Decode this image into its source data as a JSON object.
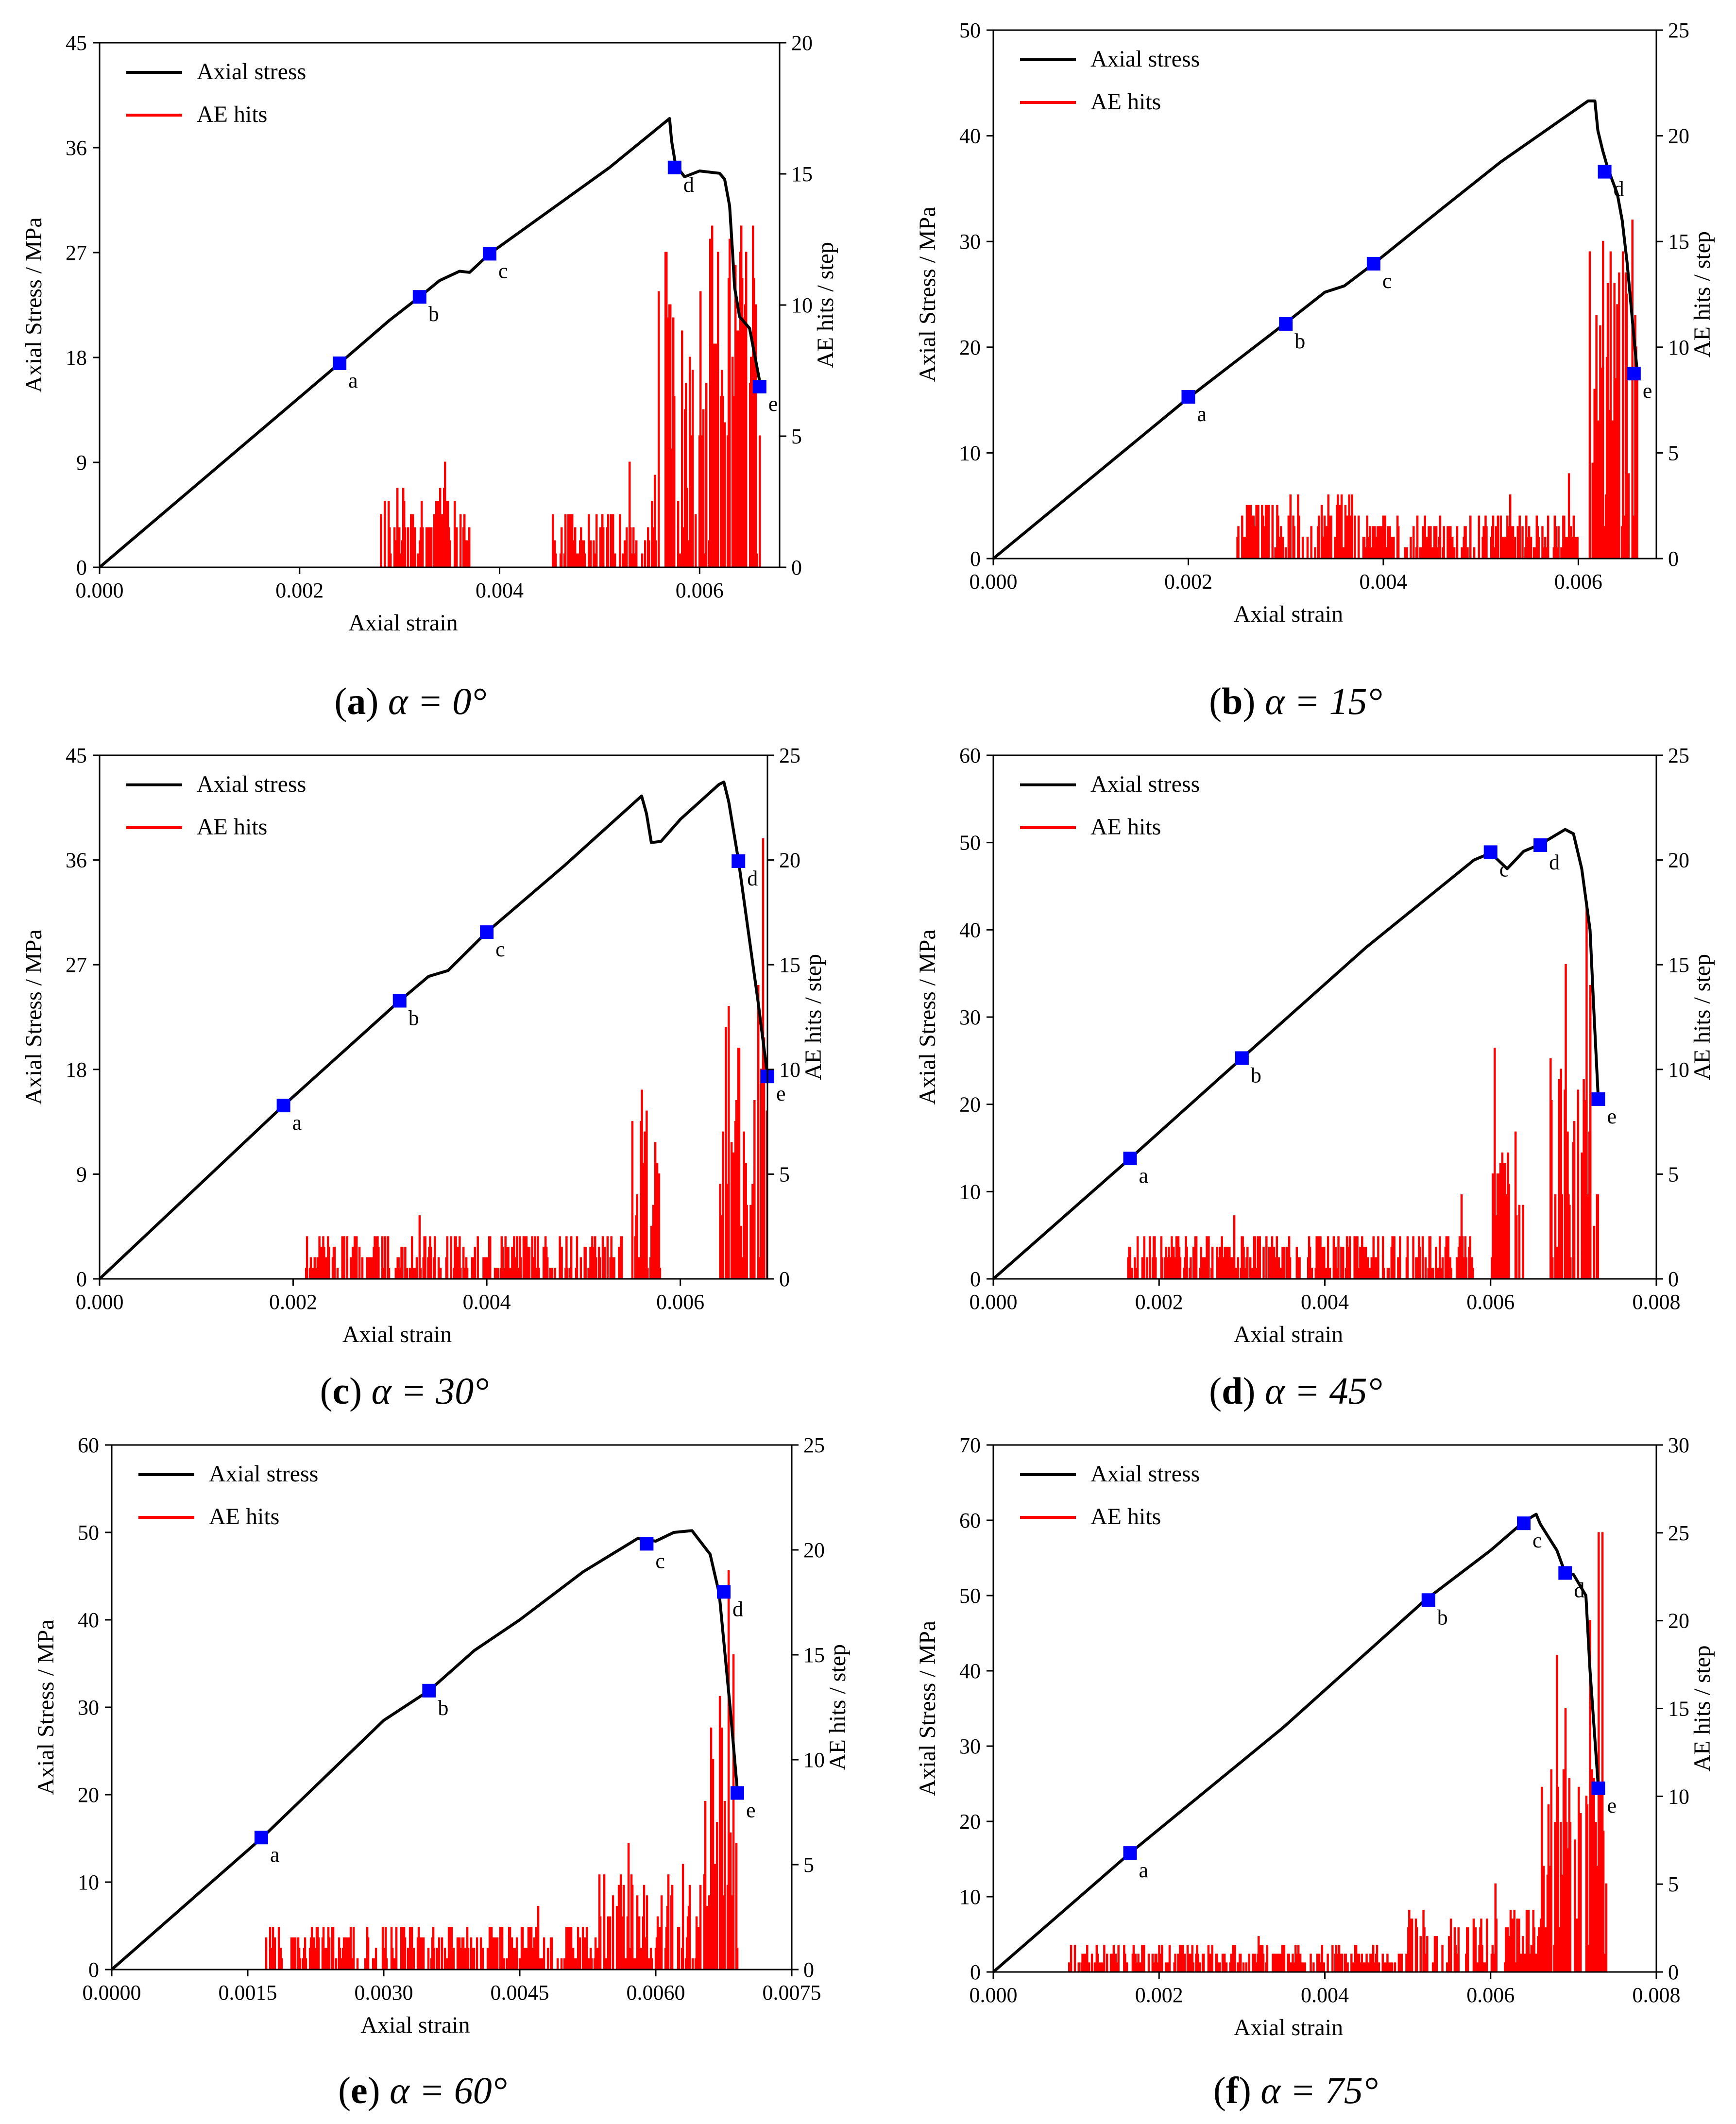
{
  "chart_data": [
    {
      "type": "line",
      "caption": {
        "letter": "a",
        "text": "α = 0°"
      },
      "xlabel": "Axial strain",
      "ylabel": "Axial Stress / MPa",
      "y2label": "AE hits / step",
      "xlim": [
        0,
        0.0068
      ],
      "ylim": [
        0,
        45
      ],
      "y2lim": [
        0,
        20
      ],
      "xticks": [
        "0.000",
        "0.002",
        "0.004",
        "0.006"
      ],
      "yticks": [
        "0",
        "9",
        "18",
        "27",
        "36",
        "45"
      ],
      "y2ticks": [
        "0",
        "5",
        "10",
        "15",
        "20"
      ],
      "legend": {
        "position": "top-left",
        "stress": "Axial stress",
        "ae": "AE hits"
      },
      "stress": [
        [
          0,
          0
        ],
        [
          0.0024,
          17.5
        ],
        [
          0.0029,
          21.2
        ],
        [
          0.0032,
          23.2
        ],
        [
          0.0034,
          24.6
        ],
        [
          0.0036,
          25.4
        ],
        [
          0.0037,
          25.3
        ],
        [
          0.0039,
          26.9
        ],
        [
          0.0045,
          30.6
        ],
        [
          0.0051,
          34.3
        ],
        [
          0.0057,
          38.5
        ],
        [
          0.00572,
          36.6
        ],
        [
          0.00576,
          34.5
        ],
        [
          0.00585,
          33.5
        ],
        [
          0.006,
          34.0
        ],
        [
          0.0062,
          33.8
        ],
        [
          0.00625,
          33.3
        ],
        [
          0.0063,
          31.0
        ],
        [
          0.00633,
          27.0
        ],
        [
          0.00635,
          24.0
        ],
        [
          0.0064,
          21.5
        ],
        [
          0.0065,
          20.5
        ],
        [
          0.0066,
          16.0
        ]
      ],
      "markers": [
        {
          "x": 0.0024,
          "y": 17.5,
          "label": "a"
        },
        {
          "x": 0.0032,
          "y": 23.2,
          "label": "b"
        },
        {
          "x": 0.0039,
          "y": 26.9,
          "label": "c"
        },
        {
          "x": 0.00575,
          "y": 34.3,
          "label": "d"
        },
        {
          "x": 0.0066,
          "y": 15.5,
          "label": "e"
        }
      ],
      "ae": {
        "onset": 0.0028,
        "end": 0.0066,
        "zones": [
          [
            0.0028,
            0.0037,
            2
          ],
          [
            0.0045,
            0.0055,
            1.5
          ],
          [
            0.0055,
            0.006,
            7
          ],
          [
            0.006,
            0.0066,
            9
          ]
        ],
        "spikes": [
          [
            0.00345,
            4
          ],
          [
            0.0034,
            3
          ],
          [
            0.0053,
            4
          ],
          [
            0.00566,
            12
          ],
          [
            0.0057,
            10
          ],
          [
            0.0059,
            8
          ],
          [
            0.00642,
            11
          ],
          [
            0.00646,
            12
          ],
          [
            0.00638,
            9
          ],
          [
            0.0065,
            7
          ]
        ]
      }
    },
    {
      "type": "line",
      "caption": {
        "letter": "b",
        "text": "α = 15°"
      },
      "xlabel": "Axial strain",
      "ylabel": "Axial Stress / MPa",
      "y2label": "AE hits / step",
      "xlim": [
        0,
        0.0068
      ],
      "ylim": [
        0,
        50
      ],
      "y2lim": [
        0,
        25
      ],
      "xticks": [
        "0.000",
        "0.002",
        "0.004",
        "0.006"
      ],
      "yticks": [
        "0",
        "10",
        "20",
        "30",
        "40",
        "50"
      ],
      "y2ticks": [
        "0",
        "5",
        "10",
        "15",
        "20",
        "25"
      ],
      "legend": {
        "position": "top-left",
        "stress": "Axial stress",
        "ae": "AE hits"
      },
      "stress": [
        [
          0,
          0
        ],
        [
          0.002,
          15.2
        ],
        [
          0.003,
          22.3
        ],
        [
          0.0034,
          25.2
        ],
        [
          0.0036,
          25.8
        ],
        [
          0.0039,
          27.9
        ],
        [
          0.0046,
          33.1
        ],
        [
          0.0052,
          37.5
        ],
        [
          0.0061,
          43.3
        ],
        [
          0.00617,
          43.3
        ],
        [
          0.0062,
          40.5
        ],
        [
          0.00625,
          38.6
        ],
        [
          0.0063,
          37.0
        ],
        [
          0.0064,
          34.5
        ],
        [
          0.00645,
          32.0
        ],
        [
          0.0065,
          28.0
        ],
        [
          0.00655,
          23.0
        ],
        [
          0.0066,
          18.0
        ]
      ],
      "markers": [
        {
          "x": 0.002,
          "y": 15.3,
          "label": "a"
        },
        {
          "x": 0.003,
          "y": 22.2,
          "label": "b"
        },
        {
          "x": 0.0039,
          "y": 27.9,
          "label": "c"
        },
        {
          "x": 0.00627,
          "y": 36.6,
          "label": "d"
        },
        {
          "x": 0.00657,
          "y": 17.5,
          "label": "e"
        }
      ],
      "ae": {
        "onset": 0.0025,
        "end": 0.0066,
        "zones": [
          [
            0.0025,
            0.0037,
            2
          ],
          [
            0.0037,
            0.006,
            1.5
          ],
          [
            0.0061,
            0.0066,
            10
          ]
        ],
        "spikes": [
          [
            0.00625,
            15
          ],
          [
            0.0063,
            13
          ],
          [
            0.00655,
            16
          ],
          [
            0.0064,
            12
          ],
          [
            0.0059,
            4
          ],
          [
            0.0053,
            3
          ]
        ]
      }
    },
    {
      "type": "line",
      "caption": {
        "letter": "c",
        "text": "α = 30°"
      },
      "xlabel": "Axial strain",
      "ylabel": "Axial Stress / MPa",
      "y2label": "AE hits / step",
      "xlim": [
        0,
        0.0069
      ],
      "ylim": [
        0,
        45
      ],
      "y2lim": [
        0,
        25
      ],
      "xticks": [
        "0.000",
        "0.002",
        "0.004",
        "0.006"
      ],
      "yticks": [
        "0",
        "9",
        "18",
        "27",
        "36",
        "45"
      ],
      "y2ticks": [
        "0",
        "5",
        "10",
        "15",
        "20",
        "25"
      ],
      "legend": {
        "position": "top-left",
        "stress": "Axial stress",
        "ae": "AE hits"
      },
      "stress": [
        [
          0,
          0
        ],
        [
          0.0019,
          14.9
        ],
        [
          0.0031,
          23.9
        ],
        [
          0.0034,
          26.0
        ],
        [
          0.0036,
          26.5
        ],
        [
          0.004,
          29.8
        ],
        [
          0.0048,
          35.5
        ],
        [
          0.0056,
          41.5
        ],
        [
          0.00565,
          40.0
        ],
        [
          0.0057,
          37.5
        ],
        [
          0.0058,
          37.6
        ],
        [
          0.006,
          39.5
        ],
        [
          0.0064,
          42.5
        ],
        [
          0.00645,
          42.7
        ],
        [
          0.0065,
          41.0
        ],
        [
          0.0066,
          36.0
        ],
        [
          0.0067,
          30.0
        ],
        [
          0.0068,
          24.0
        ],
        [
          0.0069,
          17.5
        ]
      ],
      "markers": [
        {
          "x": 0.0019,
          "y": 14.9,
          "label": "a"
        },
        {
          "x": 0.0031,
          "y": 23.9,
          "label": "b"
        },
        {
          "x": 0.004,
          "y": 29.8,
          "label": "c"
        },
        {
          "x": 0.0066,
          "y": 35.9,
          "label": "d"
        },
        {
          "x": 0.0069,
          "y": 17.4,
          "label": "e"
        }
      ],
      "ae": {
        "onset": 0.0021,
        "end": 0.0069,
        "zones": [
          [
            0.0021,
            0.0054,
            1.5
          ],
          [
            0.0055,
            0.0058,
            5
          ],
          [
            0.0064,
            0.0069,
            8
          ]
        ],
        "spikes": [
          [
            0.0056,
            9
          ],
          [
            0.00565,
            8
          ],
          [
            0.0065,
            13
          ],
          [
            0.0066,
            11
          ],
          [
            0.00685,
            21
          ],
          [
            0.0068,
            14
          ],
          [
            0.0033,
            3
          ]
        ]
      }
    },
    {
      "type": "line",
      "caption": {
        "letter": "d",
        "text": "α = 45°"
      },
      "xlabel": "Axial strain",
      "ylabel": "Axial Stress / MPa",
      "y2label": "AE hits / step",
      "xlim": [
        0,
        0.008
      ],
      "ylim": [
        0,
        60
      ],
      "y2lim": [
        0,
        25
      ],
      "xticks": [
        "0.000",
        "0.002",
        "0.004",
        "0.006",
        "0.008"
      ],
      "yticks": [
        "0",
        "10",
        "20",
        "30",
        "40",
        "50",
        "60"
      ],
      "y2ticks": [
        "0",
        "5",
        "10",
        "15",
        "20",
        "25"
      ],
      "legend": {
        "position": "top-left",
        "stress": "Axial stress",
        "ae": "AE hits"
      },
      "stress": [
        [
          0,
          0
        ],
        [
          0.00165,
          13.8
        ],
        [
          0.003,
          25.3
        ],
        [
          0.0045,
          38.0
        ],
        [
          0.0058,
          48.0
        ],
        [
          0.006,
          48.8
        ],
        [
          0.0062,
          47.0
        ],
        [
          0.0064,
          49.0
        ],
        [
          0.0066,
          49.8
        ],
        [
          0.0069,
          51.5
        ],
        [
          0.007,
          51.0
        ],
        [
          0.0071,
          47.0
        ],
        [
          0.0072,
          40.0
        ],
        [
          0.00725,
          30.0
        ],
        [
          0.0073,
          20.5
        ]
      ],
      "markers": [
        {
          "x": 0.00165,
          "y": 13.8,
          "label": "a"
        },
        {
          "x": 0.003,
          "y": 25.3,
          "label": "b"
        },
        {
          "x": 0.006,
          "y": 48.9,
          "label": "c"
        },
        {
          "x": 0.0066,
          "y": 49.7,
          "label": "d"
        },
        {
          "x": 0.0073,
          "y": 20.6,
          "label": "e"
        }
      ],
      "ae": {
        "onset": 0.0016,
        "end": 0.0073,
        "zones": [
          [
            0.0016,
            0.0058,
            1.5
          ],
          [
            0.006,
            0.0064,
            4
          ],
          [
            0.0067,
            0.0073,
            7
          ]
        ],
        "spikes": [
          [
            0.00605,
            11
          ],
          [
            0.0063,
            7
          ],
          [
            0.0069,
            15
          ],
          [
            0.00715,
            18
          ],
          [
            0.0072,
            14
          ],
          [
            0.00565,
            4
          ],
          [
            0.0029,
            3
          ]
        ]
      }
    },
    {
      "type": "line",
      "caption": {
        "letter": "e",
        "text": "α = 60°"
      },
      "xlabel": "Axial strain",
      "ylabel": "Axial Stress / MPa",
      "y2label": "AE hits / step",
      "xlim": [
        0,
        0.0075
      ],
      "ylim": [
        0,
        60
      ],
      "y2lim": [
        0,
        25
      ],
      "xticks": [
        "0.0000",
        "0.0015",
        "0.0030",
        "0.0045",
        "0.0060",
        "0.0075"
      ],
      "yticks": [
        "0",
        "10",
        "20",
        "30",
        "40",
        "50",
        "60"
      ],
      "y2ticks": [
        "0",
        "5",
        "10",
        "15",
        "20",
        "25"
      ],
      "legend": {
        "position": "top-left",
        "stress": "Axial stress",
        "ae": "AE hits"
      },
      "stress": [
        [
          0,
          0
        ],
        [
          0.00165,
          15.0
        ],
        [
          0.003,
          28.5
        ],
        [
          0.0035,
          31.9
        ],
        [
          0.004,
          36.5
        ],
        [
          0.0045,
          40.0
        ],
        [
          0.0052,
          45.5
        ],
        [
          0.0058,
          49.3
        ],
        [
          0.006,
          49.0
        ],
        [
          0.0062,
          50.0
        ],
        [
          0.0064,
          50.2
        ],
        [
          0.0066,
          47.5
        ],
        [
          0.0067,
          43.0
        ],
        [
          0.00682,
          30.0
        ],
        [
          0.0069,
          20.5
        ]
      ],
      "markers": [
        {
          "x": 0.00165,
          "y": 15.1,
          "label": "a"
        },
        {
          "x": 0.0035,
          "y": 31.9,
          "label": "b"
        },
        {
          "x": 0.0059,
          "y": 48.7,
          "label": "c"
        },
        {
          "x": 0.00675,
          "y": 43.2,
          "label": "d"
        },
        {
          "x": 0.0069,
          "y": 20.2,
          "label": "e"
        }
      ],
      "ae": {
        "onset": 0.0017,
        "end": 0.0069,
        "zones": [
          [
            0.0017,
            0.0053,
            1.5
          ],
          [
            0.0053,
            0.0065,
            3
          ],
          [
            0.0065,
            0.0069,
            8
          ]
        ],
        "spikes": [
          [
            0.0067,
            13
          ],
          [
            0.0068,
            19
          ],
          [
            0.00685,
            15
          ],
          [
            0.0057,
            6
          ],
          [
            0.0063,
            5
          ],
          [
            0.0047,
            3
          ]
        ]
      }
    },
    {
      "type": "line",
      "caption": {
        "letter": "f",
        "text": "α = 75°"
      },
      "xlabel": "Axial strain",
      "ylabel": "Axial Stress / MPa",
      "y2label": "AE hits / step",
      "xlim": [
        0,
        0.008
      ],
      "ylim": [
        0,
        70
      ],
      "y2lim": [
        0,
        30
      ],
      "xticks": [
        "0.000",
        "0.002",
        "0.004",
        "0.006",
        "0.008"
      ],
      "yticks": [
        "0",
        "10",
        "20",
        "30",
        "40",
        "50",
        "60",
        "70"
      ],
      "y2ticks": [
        "0",
        "5",
        "10",
        "15",
        "20",
        "25",
        "30"
      ],
      "legend": {
        "position": "top-left",
        "stress": "Axial stress",
        "ae": "AE hits"
      },
      "stress": [
        [
          0,
          0
        ],
        [
          0.00165,
          15.8
        ],
        [
          0.0035,
          32.5
        ],
        [
          0.0052,
          49.3
        ],
        [
          0.006,
          56.0
        ],
        [
          0.0064,
          59.8
        ],
        [
          0.00655,
          60.8
        ],
        [
          0.0066,
          59.5
        ],
        [
          0.0068,
          56.0
        ],
        [
          0.0069,
          53.0
        ],
        [
          0.007,
          52.8
        ],
        [
          0.00715,
          50.0
        ],
        [
          0.0072,
          40.0
        ],
        [
          0.0073,
          24.5
        ]
      ],
      "markers": [
        {
          "x": 0.00165,
          "y": 15.8,
          "label": "a"
        },
        {
          "x": 0.00525,
          "y": 49.4,
          "label": "b"
        },
        {
          "x": 0.0064,
          "y": 59.6,
          "label": "c"
        },
        {
          "x": 0.0069,
          "y": 53.0,
          "label": "d"
        },
        {
          "x": 0.0073,
          "y": 24.4,
          "label": "e"
        }
      ],
      "ae": {
        "onset": 0.0009,
        "end": 0.0074,
        "zones": [
          [
            0.0009,
            0.005,
            1
          ],
          [
            0.005,
            0.0066,
            2.5
          ],
          [
            0.0066,
            0.0074,
            8
          ]
        ],
        "spikes": [
          [
            0.0068,
            18
          ],
          [
            0.0069,
            15
          ],
          [
            0.0073,
            25
          ],
          [
            0.00735,
            25
          ],
          [
            0.0072,
            20
          ],
          [
            0.00605,
            5
          ],
          [
            0.0032,
            2
          ]
        ]
      }
    }
  ]
}
